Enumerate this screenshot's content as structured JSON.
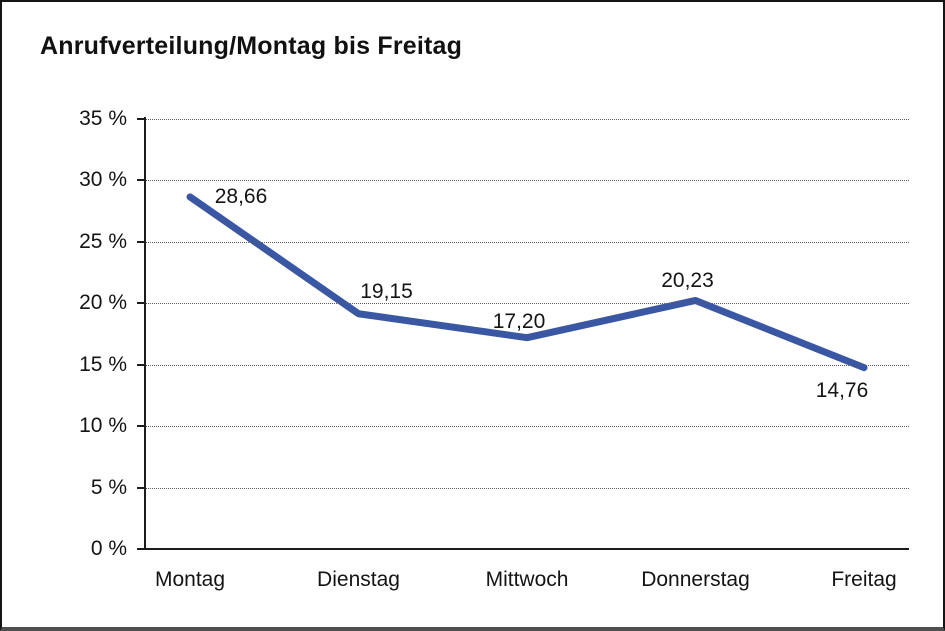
{
  "chart_data": {
    "type": "line",
    "title": "Anrufverteilung/Montag bis Freitag",
    "categories": [
      "Montag",
      "Dienstag",
      "Mittwoch",
      "Donnerstag",
      "Freitag"
    ],
    "values": [
      28.66,
      19.15,
      17.2,
      20.23,
      14.76
    ],
    "value_labels": [
      "28,66",
      "19,15",
      "17,20",
      "20,23",
      "14,76"
    ],
    "xlabel": "",
    "ylabel": "",
    "ylim": [
      0,
      35
    ],
    "y_tick_step": 5,
    "y_tick_labels": [
      "35 %",
      "30 %",
      "25 %",
      "20 %",
      "15 %",
      "10 %",
      "5 %",
      "0 %"
    ],
    "grid": "horizontal-dotted",
    "legend": "none",
    "line_color": "#3A57A3",
    "axis_color": "#1c1c1c",
    "text_color": "#141414"
  }
}
